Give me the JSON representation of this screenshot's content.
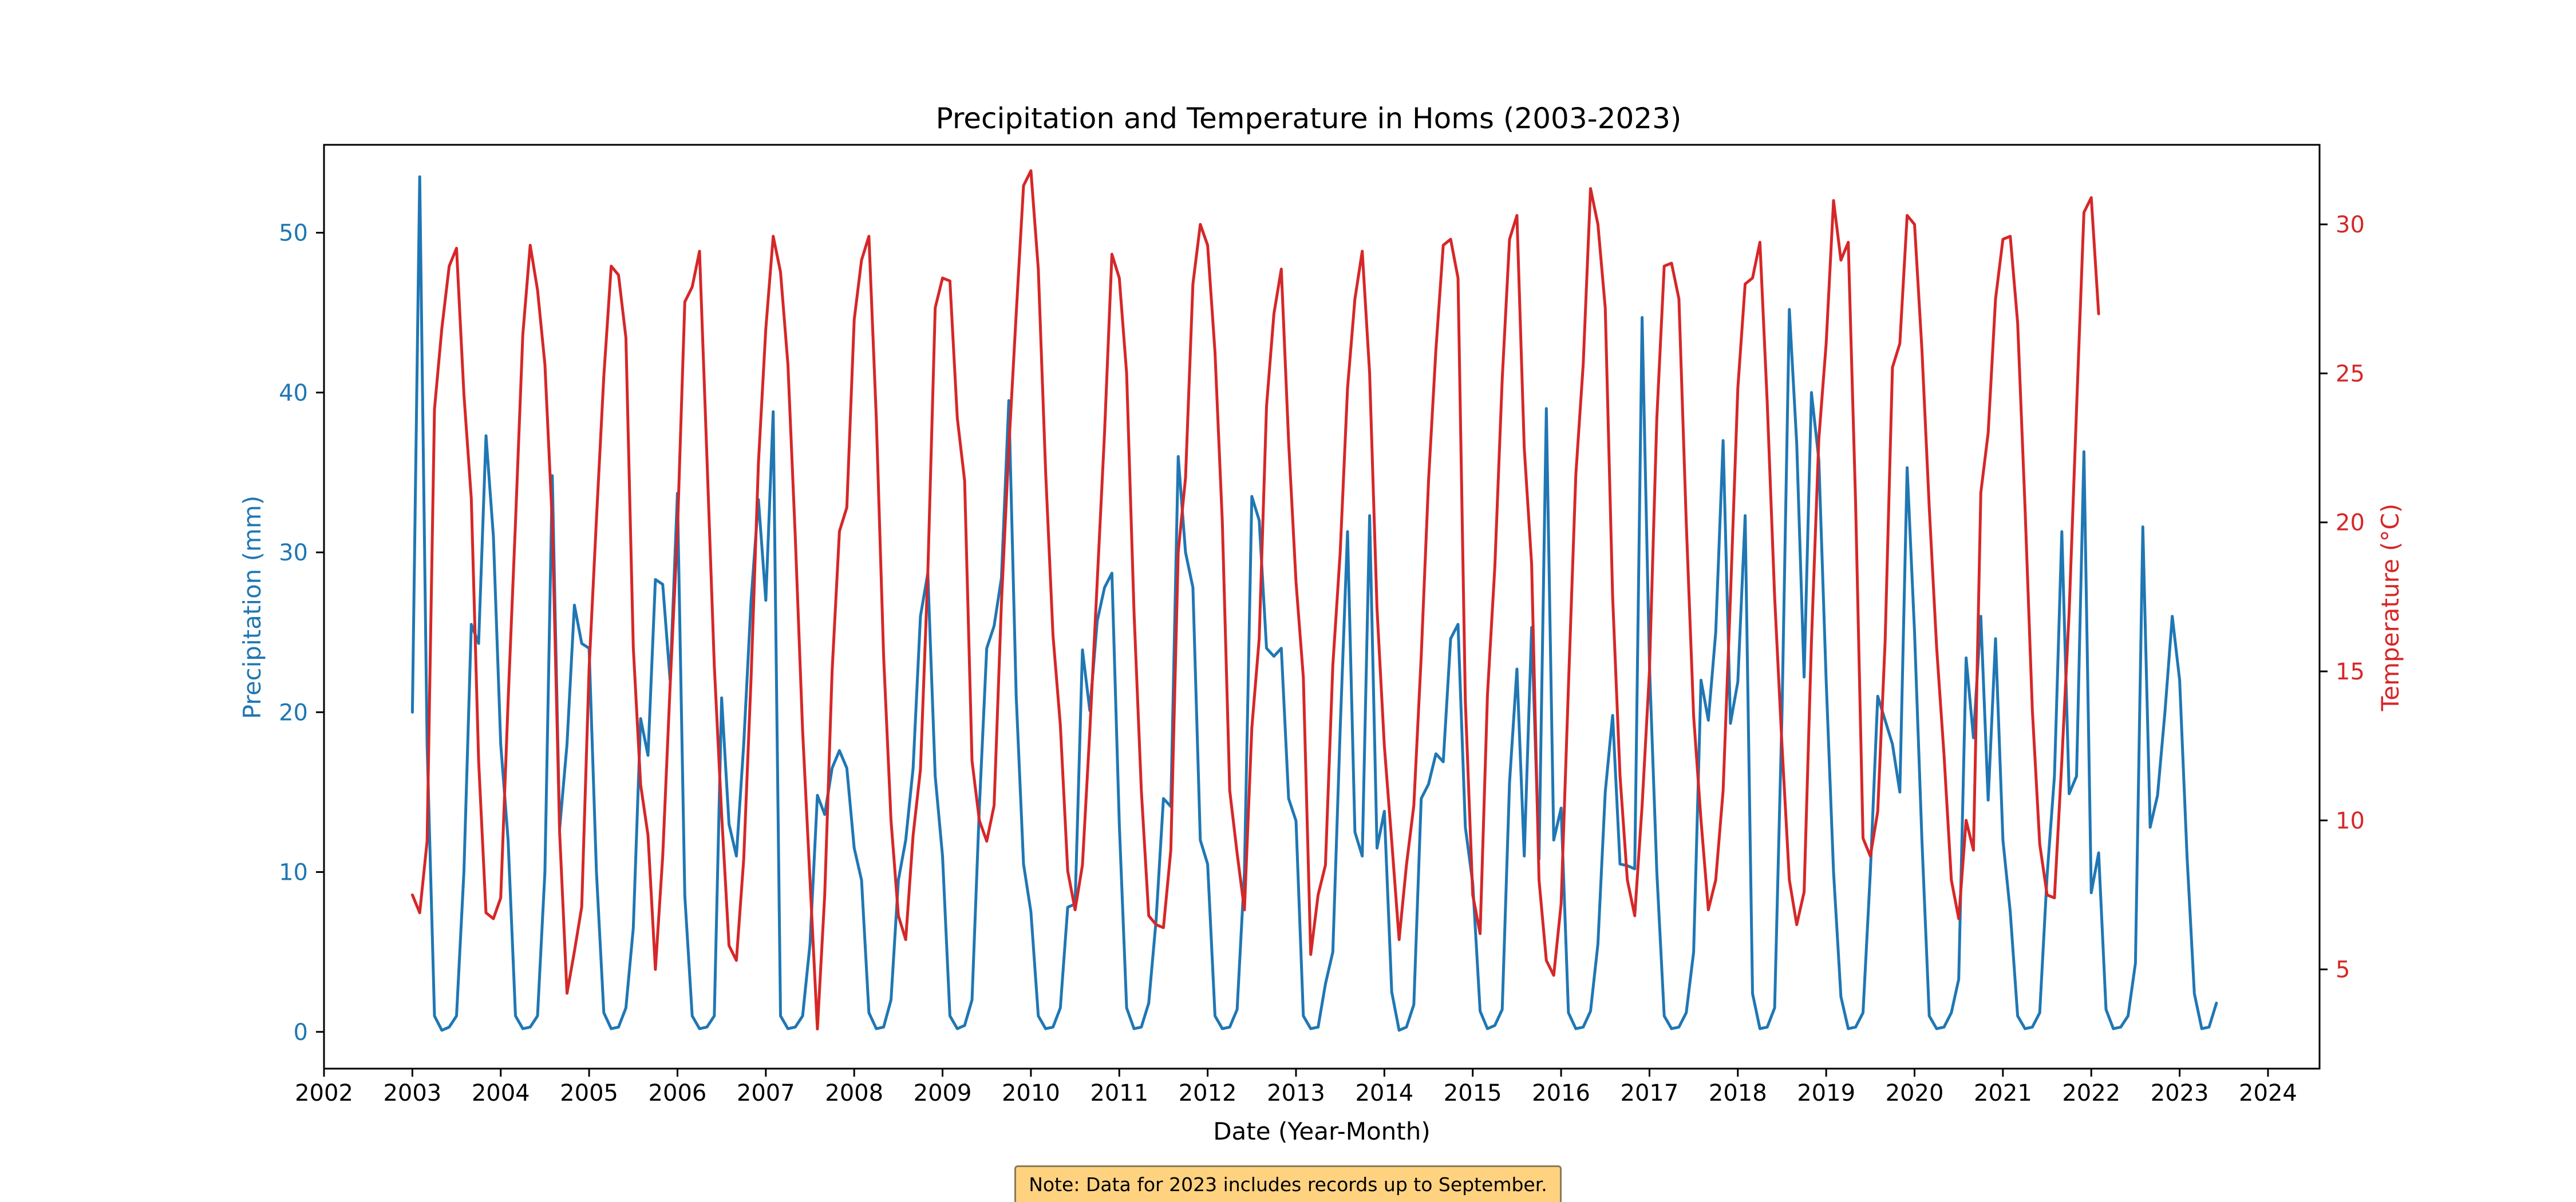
{
  "chart_data": {
    "type": "line",
    "title": "Precipitation and Temperature in Homs (2003-2023)",
    "xlabel": "Date (Year-Month)",
    "ylabel_left": "Precipitation (mm)",
    "ylabel_right": "Temperature (°C)",
    "xlim": [
      "2002-01",
      "2024-08"
    ],
    "x_ticks": [
      "2002",
      "2003",
      "2004",
      "2005",
      "2006",
      "2007",
      "2008",
      "2009",
      "2010",
      "2011",
      "2012",
      "2013",
      "2014",
      "2015",
      "2016",
      "2017",
      "2018",
      "2019",
      "2020",
      "2021",
      "2022",
      "2023",
      "2024"
    ],
    "ylim_left": [
      -2.3,
      55.5
    ],
    "yticks_left": [
      "0",
      "10",
      "20",
      "30",
      "40",
      "50"
    ],
    "ylim_right": [
      1.67,
      32.67
    ],
    "yticks_right": [
      "5",
      "10",
      "15",
      "20",
      "25",
      "30"
    ],
    "grid": false,
    "legend": "none",
    "x_start": "2003-01",
    "x_step": "1 month",
    "series": [
      {
        "axis": "left",
        "color": "#1f77b4",
        "values": [
          20.0,
          53.5,
          18.0,
          1.0,
          0.1,
          0.3,
          1.0,
          10.0,
          25.5,
          24.3,
          37.3,
          31.0,
          18.0,
          12.0,
          1.0,
          0.2,
          0.3,
          1.0,
          10.0,
          34.8,
          12.7,
          18.0,
          26.7,
          24.3,
          24.0,
          10.0,
          1.2,
          0.2,
          0.3,
          1.5,
          6.5,
          19.6,
          17.3,
          28.3,
          28.0,
          22.0,
          33.7,
          8.5,
          1.0,
          0.2,
          0.3,
          1.0,
          20.9,
          13.0,
          11.0,
          18.0,
          27.0,
          33.3,
          27.0,
          38.8,
          1.0,
          0.2,
          0.3,
          1.0,
          5.5,
          14.8,
          13.6,
          16.5,
          17.6,
          16.5,
          11.5,
          9.5,
          1.2,
          0.2,
          0.3,
          2.0,
          9.5,
          12.0,
          16.5,
          26.0,
          28.7,
          16.0,
          11.0,
          1.0,
          0.2,
          0.4,
          2.0,
          14.0,
          24.0,
          25.4,
          28.4,
          39.5,
          21.0,
          10.5,
          7.5,
          1.0,
          0.2,
          0.3,
          1.5,
          7.8,
          8.0,
          23.9,
          20.1,
          25.7,
          27.8,
          28.7,
          13.0,
          1.5,
          0.2,
          0.3,
          1.8,
          7.0,
          14.6,
          14.1,
          36.0,
          30.0,
          27.8,
          12.0,
          10.5,
          1.0,
          0.2,
          0.3,
          1.4,
          10.0,
          33.5,
          32.0,
          24.0,
          23.5,
          24.0,
          14.6,
          13.2,
          1.0,
          0.2,
          0.3,
          3.0,
          5.0,
          19.0,
          31.3,
          12.5,
          11.0,
          32.3,
          11.5,
          13.8,
          2.5,
          0.1,
          0.3,
          1.7,
          14.6,
          15.5,
          17.4,
          16.9,
          24.6,
          25.5,
          12.8,
          9.3,
          1.3,
          0.2,
          0.4,
          1.4,
          15.6,
          22.7,
          11.0,
          25.3,
          10.8,
          39.0,
          12.0,
          14.0,
          1.2,
          0.2,
          0.3,
          1.3,
          5.5,
          15.0,
          19.8,
          10.5,
          10.4,
          10.2,
          44.7,
          23.0,
          10.0,
          1.0,
          0.2,
          0.3,
          1.2,
          5.0,
          22.0,
          19.5,
          25.0,
          37.0,
          19.3,
          21.9,
          32.3,
          2.4,
          0.2,
          0.3,
          1.5,
          20.0,
          45.2,
          36.8,
          22.2,
          40.0,
          35.8,
          22.0,
          10.0,
          2.2,
          0.2,
          0.3,
          1.2,
          10.0,
          21.0,
          19.5,
          18.0,
          15.0,
          35.3,
          25.0,
          12.0,
          1.0,
          0.2,
          0.3,
          1.2,
          3.3,
          23.4,
          18.4,
          26.0,
          14.5,
          24.6,
          12.0,
          7.5,
          1.0,
          0.2,
          0.3,
          1.2,
          9.8,
          16.0,
          31.3,
          14.9,
          16.0,
          36.3,
          8.7,
          11.2,
          1.4,
          0.2,
          0.3,
          1.0,
          4.3,
          31.6,
          12.8,
          14.8,
          20.0,
          26.0,
          22.0,
          11.0,
          2.4,
          0.2,
          0.3,
          1.8
        ]
      },
      {
        "axis": "right",
        "color": "#d62728",
        "values": [
          7.5,
          6.9,
          9.3,
          23.8,
          26.5,
          28.6,
          29.2,
          24.3,
          20.8,
          12.0,
          6.9,
          6.7,
          7.4,
          14.0,
          20.0,
          26.3,
          29.3,
          27.8,
          25.3,
          20.0,
          9.6,
          4.2,
          5.6,
          7.1,
          15.1,
          20.1,
          24.9,
          28.6,
          28.3,
          26.2,
          15.8,
          11.2,
          9.5,
          5.0,
          8.8,
          14.5,
          19.7,
          27.4,
          27.9,
          29.1,
          22.2,
          15.2,
          10.2,
          5.8,
          5.3,
          8.7,
          14.8,
          22.0,
          26.5,
          29.6,
          28.4,
          25.3,
          19.5,
          13.0,
          8.0,
          3.0,
          7.5,
          15.0,
          19.7,
          20.5,
          26.8,
          28.8,
          29.6,
          23.5,
          15.5,
          10.0,
          6.8,
          6.0,
          9.5,
          11.7,
          18.3,
          27.2,
          28.2,
          28.1,
          23.5,
          21.4,
          12.0,
          10.0,
          9.3,
          10.5,
          17.3,
          22.5,
          27.0,
          31.3,
          31.8,
          28.5,
          21.7,
          16.2,
          13.2,
          8.3,
          7.0,
          8.5,
          13.0,
          18.0,
          23.0,
          29.0,
          28.2,
          25.0,
          17.0,
          11.0,
          6.8,
          6.5,
          6.4,
          9.0,
          19.0,
          21.5,
          28.0,
          30.0,
          29.3,
          25.7,
          20.0,
          11.0,
          8.9,
          7.0,
          13.1,
          16.1,
          23.9,
          27.0,
          28.5,
          22.7,
          18.0,
          14.8,
          5.5,
          7.5,
          8.5,
          15.2,
          19.0,
          24.5,
          27.5,
          29.1,
          25.0,
          17.1,
          12.5,
          9.3,
          6.0,
          8.5,
          10.5,
          15.5,
          21.4,
          25.8,
          29.3,
          29.5,
          28.2,
          14.0,
          7.5,
          6.2,
          14.2,
          18.5,
          24.8,
          29.5,
          30.3,
          22.5,
          18.6,
          8.0,
          5.3,
          4.8,
          7.2,
          14.5,
          21.6,
          25.3,
          31.2,
          30.0,
          27.2,
          17.5,
          11.5,
          8.0,
          6.8,
          10.5,
          15.0,
          23.5,
          28.6,
          28.7,
          27.5,
          20.0,
          13.5,
          10.0,
          7.0,
          8.0,
          11.0,
          17.5,
          24.5,
          28.0,
          28.2,
          29.4,
          24.0,
          17.5,
          12.5,
          8.0,
          6.5,
          7.6,
          16.0,
          22.8,
          26.0,
          30.8,
          28.8,
          29.4,
          20.6,
          9.4,
          8.8,
          10.3,
          16.0,
          25.2,
          26.0,
          30.3,
          30.0,
          25.8,
          20.5,
          15.8,
          12.2,
          8.0,
          6.7,
          10.0,
          9.0,
          21.0,
          23.0,
          27.5,
          29.5,
          29.6,
          26.7,
          20.5,
          13.7,
          9.2,
          7.5,
          7.4,
          12.0,
          17.0,
          23.8,
          30.4,
          30.9,
          27.0
        ]
      }
    ]
  },
  "note": "Note: Data for 2023 includes records up to September.",
  "colors": {
    "left_axis": "#1f77b4",
    "right_axis": "#d62728",
    "note_background": "#ffd280",
    "note_border": "#8a7a56"
  }
}
